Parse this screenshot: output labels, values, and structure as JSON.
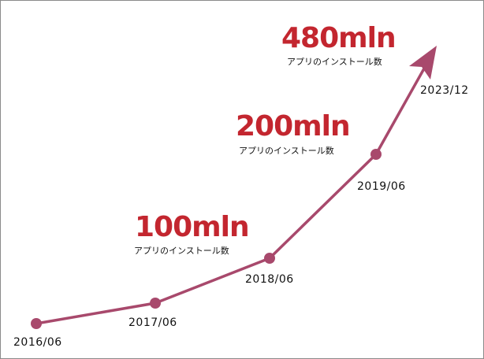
{
  "chart_data": {
    "type": "line",
    "categories": [
      "2016/06",
      "2017/06",
      "2018/06",
      "2019/06",
      "2023/12"
    ],
    "annotations": [
      {
        "category": "2018/06",
        "value_label": "100mln",
        "caption": "アプリのインストール数"
      },
      {
        "category": "2019/06",
        "value_label": "200mln",
        "caption": "アプリのインストール数"
      },
      {
        "category": "2023/12",
        "value_label": "480mln",
        "caption": "アプリのインストール数"
      }
    ],
    "final_point_style": "arrow",
    "grid": false,
    "axes_visible": false
  },
  "colors": {
    "line": "#a8496c",
    "value_label": "#c3262f",
    "text": "#111111",
    "border": "#8a8a8a"
  }
}
